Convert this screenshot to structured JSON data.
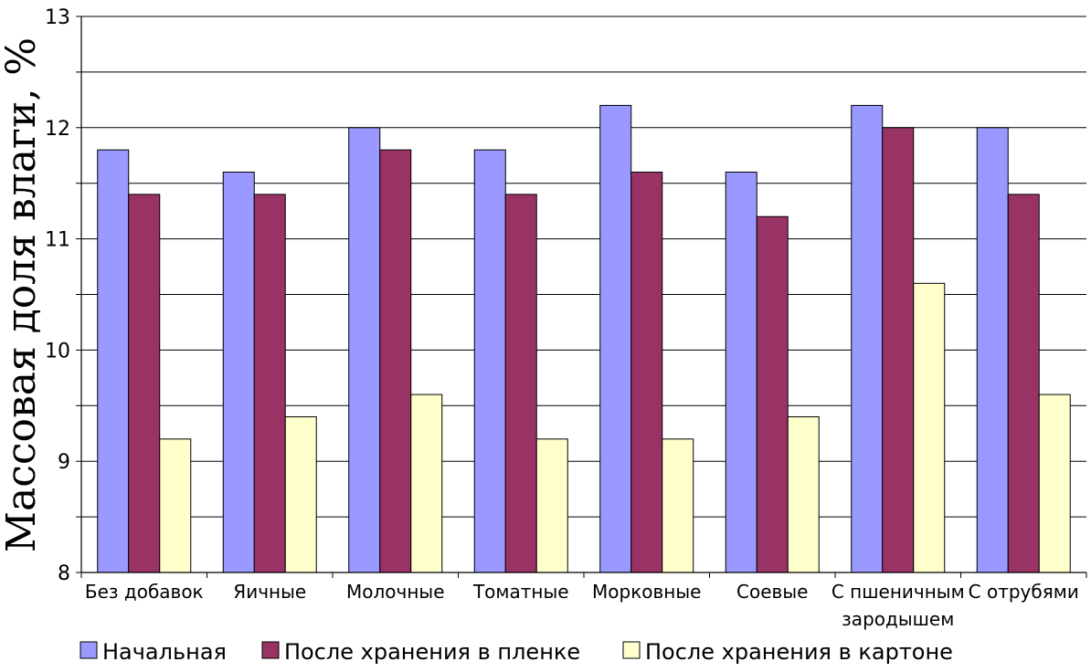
{
  "chart_data": {
    "type": "bar",
    "title": "",
    "xlabel": "",
    "ylabel": "Массовая доля влаги, %",
    "ylim": [
      8,
      13
    ],
    "yticks": [
      8,
      9,
      10,
      11,
      12,
      13
    ],
    "grid": true,
    "legend_position": "bottom",
    "categories": [
      [
        "Без добавок"
      ],
      [
        "Яичные"
      ],
      [
        "Молочные"
      ],
      [
        "Томатные"
      ],
      [
        "Морковные"
      ],
      [
        "Соевые"
      ],
      [
        "С пшеничным",
        "зародышем"
      ],
      [
        "С отрубями"
      ]
    ],
    "series": [
      {
        "name": "Начальная",
        "color": "#9999ff",
        "values": [
          11.8,
          11.6,
          12.0,
          11.8,
          12.2,
          11.6,
          12.2,
          12.0
        ]
      },
      {
        "name": "После хранения в пленке",
        "color": "#993366",
        "values": [
          11.4,
          11.4,
          11.8,
          11.4,
          11.6,
          11.2,
          12.0,
          11.4
        ]
      },
      {
        "name": "После хранения в картоне",
        "color": "#ffffcc",
        "values": [
          9.2,
          9.4,
          9.6,
          9.2,
          9.2,
          9.4,
          10.6,
          9.6
        ]
      }
    ]
  }
}
